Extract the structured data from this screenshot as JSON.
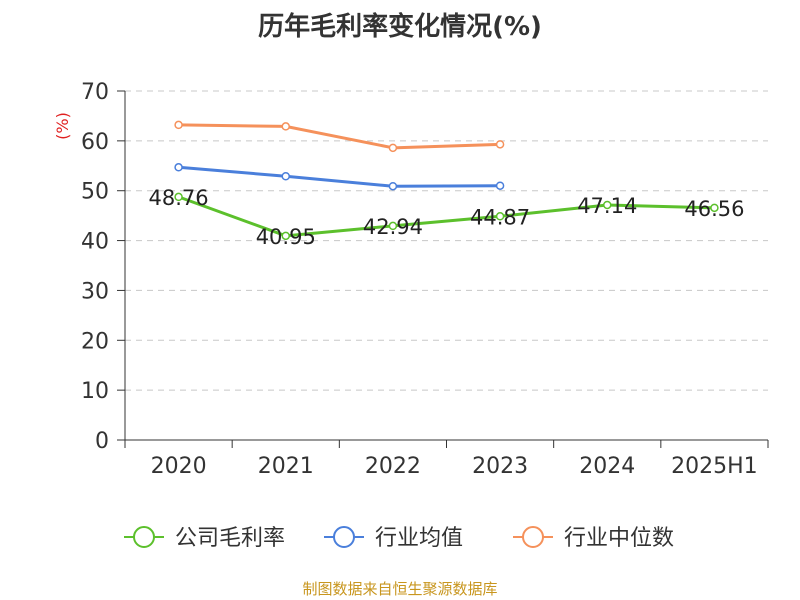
{
  "chart_data": {
    "type": "line",
    "title": "历年毛利率变化情况(%)",
    "ylabel": "(%)",
    "xlabel": "",
    "categories": [
      "2020",
      "2021",
      "2022",
      "2023",
      "2024",
      "2025H1"
    ],
    "ylim": [
      0,
      70
    ],
    "yticks": [
      "0",
      "10",
      "20",
      "30",
      "40",
      "50",
      "60",
      "70"
    ],
    "grid": true,
    "legend_position": "bottom",
    "series": [
      {
        "name": "公司毛利率",
        "color": "#5cc02c",
        "values": [
          48.76,
          40.95,
          42.94,
          44.87,
          47.14,
          46.56
        ],
        "labels": [
          "48.76",
          "40.95",
          "42.94",
          "44.87",
          "47.14",
          "46.56"
        ]
      },
      {
        "name": "行业均值",
        "color": "#4a7fdb",
        "values": [
          54.7,
          52.9,
          50.9,
          51.0,
          null,
          null
        ]
      },
      {
        "name": "行业中位数",
        "color": "#f5915b",
        "values": [
          63.2,
          62.9,
          58.6,
          59.3,
          null,
          null
        ]
      }
    ]
  },
  "footer": "制图数据来自恒生聚源数据库"
}
